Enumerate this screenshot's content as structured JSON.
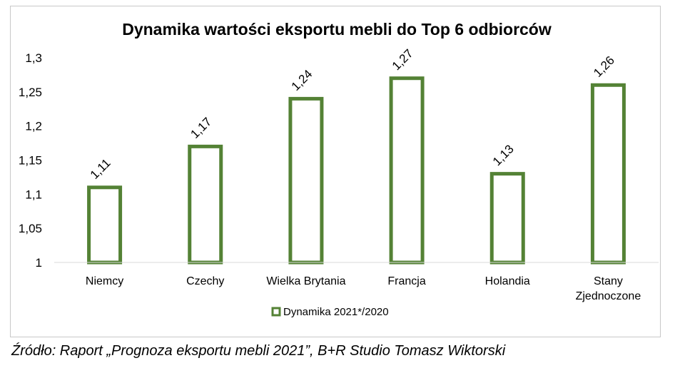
{
  "chart_data": {
    "type": "bar",
    "title": "Dynamika wartości eksportu mebli do Top 6 odbiorców",
    "categories": [
      [
        "Niemcy"
      ],
      [
        "Czechy"
      ],
      [
        "Wielka Brytania"
      ],
      [
        "Francja"
      ],
      [
        "Holandia"
      ],
      [
        "Stany",
        "Zjednoczone"
      ]
    ],
    "series": [
      {
        "name": "Dynamika 2021*/2020",
        "values": [
          1.11,
          1.17,
          1.24,
          1.27,
          1.13,
          1.26
        ],
        "labels": [
          "1,11",
          "1,17",
          "1,24",
          "1,27",
          "1,13",
          "1,26"
        ],
        "color": "#548235"
      }
    ],
    "ylim": [
      1,
      1.3
    ],
    "yticks": [
      1,
      1.05,
      1.1,
      1.15,
      1.2,
      1.25,
      1.3
    ],
    "ytick_labels": [
      "1",
      "1,05",
      "1,1",
      "1,15",
      "1,2",
      "1,25",
      "1,3"
    ],
    "xlabel": "",
    "ylabel": "",
    "grid": false,
    "legend_position": "bottom"
  },
  "source": "Źródło: Raport „Prognoza eksportu mebli 2021”, B+R Studio Tomasz Wiktorski"
}
